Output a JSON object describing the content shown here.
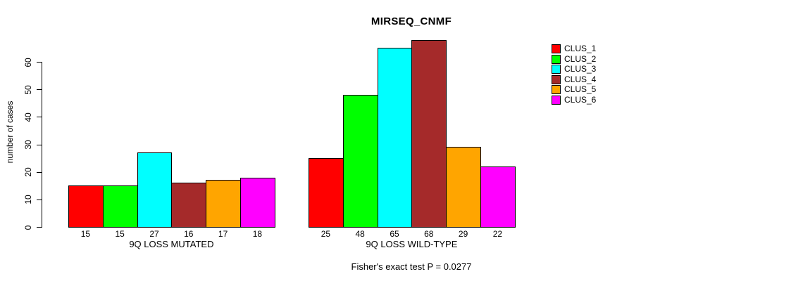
{
  "chart_data": {
    "type": "bar",
    "title": "MIRSEQ_CNMF",
    "ylabel": "number of cases",
    "xlabel": "",
    "yticks": [
      0,
      10,
      20,
      30,
      40,
      50,
      60
    ],
    "ylim": [
      0,
      68
    ],
    "grid": false,
    "legend_position": "right-outside",
    "bar_value_labels": true,
    "categories": [
      "9Q LOSS MUTATED",
      "9Q LOSS WILD-TYPE"
    ],
    "series": [
      {
        "name": "CLUS_1",
        "color": "#ff0000",
        "values": [
          15,
          25
        ]
      },
      {
        "name": "CLUS_2",
        "color": "#00ff00",
        "values": [
          15,
          48
        ]
      },
      {
        "name": "CLUS_3",
        "color": "#00ffff",
        "values": [
          27,
          65
        ]
      },
      {
        "name": "CLUS_4",
        "color": "#a52a2a",
        "values": [
          16,
          68
        ]
      },
      {
        "name": "CLUS_5",
        "color": "#ffa500",
        "values": [
          17,
          29
        ]
      },
      {
        "name": "CLUS_6",
        "color": "#ff00ff",
        "values": [
          18,
          22
        ]
      }
    ],
    "footnote": "Fisher's exact test P = 0.0277"
  }
}
